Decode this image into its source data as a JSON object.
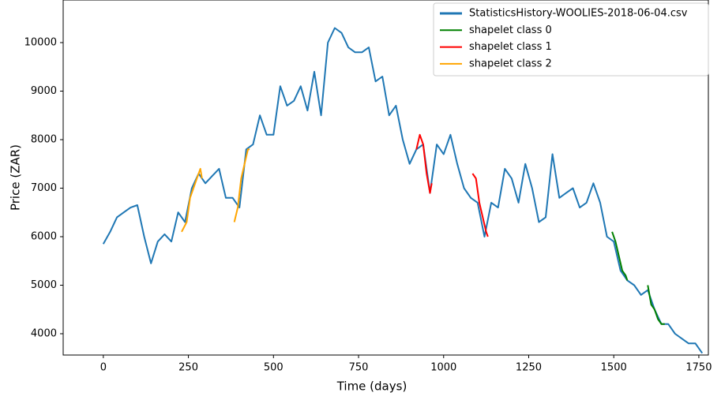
{
  "chart_data": {
    "type": "line",
    "x_label": "Time (days)",
    "y_label": "Price (ZAR)",
    "xlim": [
      -118,
      1778
    ],
    "ylim": [
      3561,
      10878
    ],
    "xticks": [
      0,
      250,
      500,
      750,
      1000,
      1250,
      1500,
      1750
    ],
    "yticks": [
      4000,
      5000,
      6000,
      7000,
      8000,
      9000,
      10000
    ],
    "grid": false,
    "legend": "upper right",
    "series": [
      {
        "name": "StatisticsHistory-WOOLIES-2018-06-04.csv",
        "color": "#1f77b4",
        "x": [
          0,
          20,
          40,
          60,
          80,
          100,
          120,
          140,
          160,
          180,
          200,
          220,
          240,
          260,
          280,
          300,
          320,
          340,
          360,
          380,
          400,
          420,
          440,
          460,
          480,
          500,
          520,
          540,
          560,
          580,
          600,
          620,
          640,
          660,
          680,
          700,
          720,
          740,
          760,
          780,
          800,
          820,
          840,
          860,
          880,
          900,
          920,
          940,
          960,
          980,
          1000,
          1020,
          1040,
          1060,
          1080,
          1100,
          1120,
          1140,
          1160,
          1180,
          1200,
          1220,
          1240,
          1260,
          1280,
          1300,
          1320,
          1340,
          1360,
          1380,
          1400,
          1420,
          1440,
          1460,
          1480,
          1500,
          1520,
          1540,
          1560,
          1580,
          1600,
          1620,
          1640,
          1660,
          1680,
          1700,
          1720,
          1740,
          1760
        ],
        "values": [
          5850,
          6100,
          6400,
          6500,
          6600,
          6650,
          6000,
          5450,
          5900,
          6050,
          5900,
          6500,
          6300,
          7000,
          7300,
          7100,
          7250,
          7400,
          6800,
          6800,
          6600,
          7800,
          7900,
          8500,
          8100,
          8100,
          9100,
          8700,
          8800,
          9100,
          8600,
          9400,
          8500,
          10000,
          10300,
          10200,
          9900,
          9800,
          9800,
          9900,
          9200,
          9300,
          8500,
          8700,
          8000,
          7500,
          7800,
          7900,
          6900,
          7900,
          7700,
          8100,
          7500,
          7000,
          6800,
          6700,
          6000,
          6700,
          6600,
          7400,
          7200,
          6700,
          7500,
          7000,
          6300,
          6400,
          7700,
          6800,
          6900,
          7000,
          6600,
          6700,
          7100,
          6700,
          6000,
          5900,
          5300,
          5100,
          5000,
          4800,
          4900,
          4500,
          4200,
          4200,
          4000,
          3900,
          3800,
          3800,
          3600
        ]
      },
      {
        "name": "shapelet class 0",
        "color": "green",
        "x": [
          1495,
          1505,
          1515,
          1525,
          1535,
          1540,
          1545,
          1600,
          1610,
          1620,
          1630,
          1640,
          1650
        ],
        "values": [
          6100,
          5900,
          5600,
          5300,
          5200,
          5100,
          null,
          5000,
          4600,
          4500,
          4300,
          4200,
          4200
        ]
      },
      {
        "name": "shapelet class 1",
        "color": "red",
        "x": [
          920,
          930,
          940,
          950,
          960,
          965,
          1000,
          1085,
          1095,
          1105,
          1115,
          1125,
          1130
        ],
        "values": [
          7800,
          8100,
          7900,
          7300,
          6900,
          7100,
          null,
          7300,
          7200,
          6700,
          6400,
          6100,
          6000
        ]
      },
      {
        "name": "shapelet class 2",
        "color": "orange",
        "x": [
          230,
          245,
          255,
          265,
          275,
          285,
          290,
          330,
          385,
          395,
          405,
          415,
          425,
          430
        ],
        "values": [
          6100,
          6300,
          6800,
          7000,
          7200,
          7400,
          7200,
          null,
          6300,
          6600,
          7200,
          7500,
          7800,
          7800
        ]
      }
    ]
  }
}
